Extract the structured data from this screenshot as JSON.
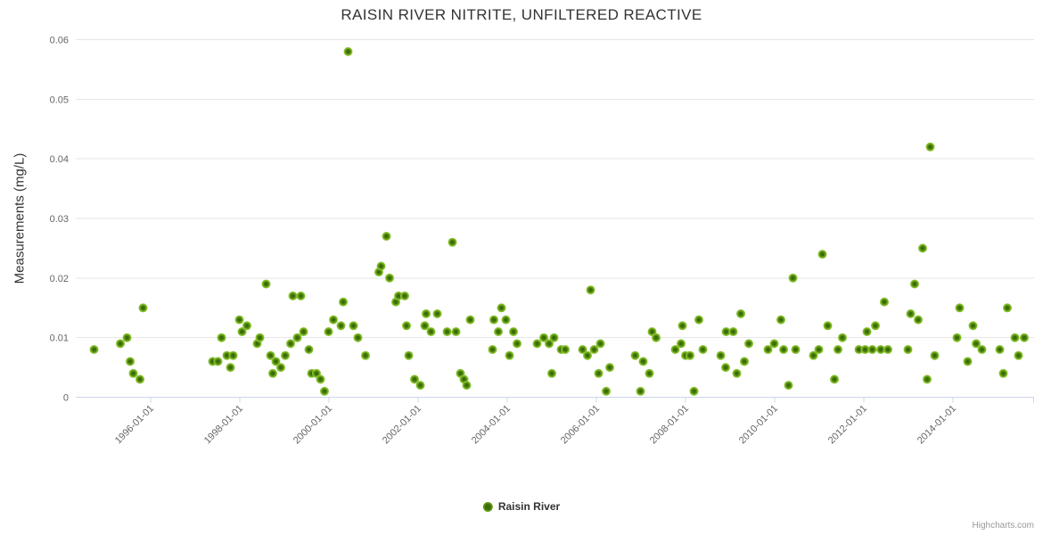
{
  "chart": {
    "title": "RAISIN RIVER NITRITE, UNFILTERED REACTIVE",
    "y_axis_title": "Measurements (mg/L)",
    "legend_label": "Raisin River",
    "credits": "Highcharts.com",
    "colors": {
      "point_core": "#3a6c08",
      "point_mid": "#7ab31e",
      "point_outer": "#94ce47",
      "gridline": "#e6e6e6",
      "axis_line": "#ccd6eb",
      "axis_label": "#666666",
      "title_text": "#333333"
    }
  },
  "chart_data": {
    "type": "scatter",
    "title": "RAISIN RIVER NITRITE, UNFILTERED REACTIVE",
    "xlabel": "",
    "ylabel": "Measurements (mg/L)",
    "ylim": [
      0,
      0.06
    ],
    "y_tick_values": [
      0,
      0.01,
      0.02,
      0.03,
      0.04,
      0.05,
      0.06
    ],
    "y_tick_labels": [
      "0",
      "0.01",
      "0.02",
      "0.03",
      "0.04",
      "0.05",
      "0.06"
    ],
    "xlim_decimal_years": [
      1994.32,
      2015.82
    ],
    "x_tick_years": [
      1996,
      1998,
      2000,
      2002,
      2004,
      2006,
      2008,
      2010,
      2012,
      2014
    ],
    "x_tick_labels": [
      "1996-01-01",
      "1998-01-01",
      "2000-01-01",
      "2002-01-01",
      "2004-01-01",
      "2006-01-01",
      "2008-01-01",
      "2010-01-01",
      "2012-01-01",
      "2014-01-01"
    ],
    "grid": "horizontal",
    "legend_position": "bottom-center",
    "series": [
      {
        "name": "Raisin River",
        "marker_color": "#7ab31e",
        "points": [
          [
            1994.73,
            0.008
          ],
          [
            1995.32,
            0.009
          ],
          [
            1995.47,
            0.01
          ],
          [
            1995.54,
            0.006
          ],
          [
            1995.61,
            0.004
          ],
          [
            1995.76,
            0.003
          ],
          [
            1995.83,
            0.015
          ],
          [
            1997.39,
            0.006
          ],
          [
            1997.51,
            0.006
          ],
          [
            1997.59,
            0.01
          ],
          [
            1997.71,
            0.007
          ],
          [
            1997.79,
            0.005
          ],
          [
            1997.85,
            0.007
          ],
          [
            1997.99,
            0.013
          ],
          [
            1998.05,
            0.011
          ],
          [
            1998.16,
            0.012
          ],
          [
            1998.39,
            0.009
          ],
          [
            1998.45,
            0.01
          ],
          [
            1998.59,
            0.019
          ],
          [
            1998.69,
            0.007
          ],
          [
            1998.74,
            0.004
          ],
          [
            1998.81,
            0.006
          ],
          [
            1998.92,
            0.005
          ],
          [
            1999.02,
            0.007
          ],
          [
            1999.14,
            0.009
          ],
          [
            1999.19,
            0.017
          ],
          [
            1999.29,
            0.01
          ],
          [
            1999.37,
            0.017
          ],
          [
            1999.43,
            0.011
          ],
          [
            1999.55,
            0.008
          ],
          [
            1999.61,
            0.004
          ],
          [
            1999.72,
            0.004
          ],
          [
            1999.81,
            0.003
          ],
          [
            1999.9,
            0.001
          ],
          [
            1999.99,
            0.011
          ],
          [
            2000.1,
            0.013
          ],
          [
            2000.27,
            0.012
          ],
          [
            2000.32,
            0.016
          ],
          [
            2000.43,
            0.058
          ],
          [
            2000.55,
            0.012
          ],
          [
            2000.65,
            0.01
          ],
          [
            2000.82,
            0.007
          ],
          [
            2001.12,
            0.021
          ],
          [
            2001.17,
            0.022
          ],
          [
            2001.29,
            0.027
          ],
          [
            2001.36,
            0.02
          ],
          [
            2001.5,
            0.016
          ],
          [
            2001.56,
            0.017
          ],
          [
            2001.7,
            0.017
          ],
          [
            2001.74,
            0.012
          ],
          [
            2001.79,
            0.007
          ],
          [
            2001.92,
            0.003
          ],
          [
            2002.05,
            0.002
          ],
          [
            2002.15,
            0.012
          ],
          [
            2002.18,
            0.014
          ],
          [
            2002.29,
            0.011
          ],
          [
            2002.43,
            0.014
          ],
          [
            2002.65,
            0.011
          ],
          [
            2002.77,
            0.026
          ],
          [
            2002.85,
            0.011
          ],
          [
            2002.95,
            0.004
          ],
          [
            2003.03,
            0.003
          ],
          [
            2003.09,
            0.002
          ],
          [
            2003.17,
            0.013
          ],
          [
            2003.67,
            0.008
          ],
          [
            2003.7,
            0.013
          ],
          [
            2003.8,
            0.011
          ],
          [
            2003.87,
            0.015
          ],
          [
            2003.97,
            0.013
          ],
          [
            2004.05,
            0.007
          ],
          [
            2004.14,
            0.011
          ],
          [
            2004.22,
            0.009
          ],
          [
            2004.67,
            0.009
          ],
          [
            2004.82,
            0.01
          ],
          [
            2004.94,
            0.009
          ],
          [
            2005.0,
            0.004
          ],
          [
            2005.05,
            0.01
          ],
          [
            2005.21,
            0.008
          ],
          [
            2005.3,
            0.008
          ],
          [
            2005.69,
            0.008
          ],
          [
            2005.8,
            0.007
          ],
          [
            2005.87,
            0.018
          ],
          [
            2005.95,
            0.008
          ],
          [
            2006.05,
            0.004
          ],
          [
            2006.09,
            0.009
          ],
          [
            2006.22,
            0.001
          ],
          [
            2006.3,
            0.005
          ],
          [
            2006.87,
            0.007
          ],
          [
            2006.99,
            0.001
          ],
          [
            2007.05,
            0.006
          ],
          [
            2007.19,
            0.004
          ],
          [
            2007.25,
            0.011
          ],
          [
            2007.34,
            0.01
          ],
          [
            2007.77,
            0.008
          ],
          [
            2007.9,
            0.009
          ],
          [
            2007.93,
            0.012
          ],
          [
            2008.0,
            0.007
          ],
          [
            2008.1,
            0.007
          ],
          [
            2008.19,
            0.001
          ],
          [
            2008.3,
            0.013
          ],
          [
            2008.39,
            0.008
          ],
          [
            2008.79,
            0.007
          ],
          [
            2008.9,
            0.005
          ],
          [
            2008.91,
            0.011
          ],
          [
            2009.07,
            0.011
          ],
          [
            2009.15,
            0.004
          ],
          [
            2009.24,
            0.014
          ],
          [
            2009.32,
            0.006
          ],
          [
            2009.42,
            0.009
          ],
          [
            2009.85,
            0.008
          ],
          [
            2009.99,
            0.009
          ],
          [
            2010.14,
            0.013
          ],
          [
            2010.2,
            0.008
          ],
          [
            2010.31,
            0.002
          ],
          [
            2010.41,
            0.02
          ],
          [
            2010.47,
            0.008
          ],
          [
            2010.87,
            0.007
          ],
          [
            2010.99,
            0.008
          ],
          [
            2011.07,
            0.024
          ],
          [
            2011.19,
            0.012
          ],
          [
            2011.34,
            0.003
          ],
          [
            2011.42,
            0.008
          ],
          [
            2011.52,
            0.01
          ],
          [
            2011.89,
            0.008
          ],
          [
            2012.03,
            0.008
          ],
          [
            2012.07,
            0.011
          ],
          [
            2012.19,
            0.008
          ],
          [
            2012.26,
            0.012
          ],
          [
            2012.38,
            0.008
          ],
          [
            2012.46,
            0.016
          ],
          [
            2012.54,
            0.008
          ],
          [
            2012.99,
            0.008
          ],
          [
            2013.05,
            0.014
          ],
          [
            2013.14,
            0.019
          ],
          [
            2013.22,
            0.013
          ],
          [
            2013.32,
            0.025
          ],
          [
            2013.42,
            0.003
          ],
          [
            2013.49,
            0.042
          ],
          [
            2013.59,
            0.007
          ],
          [
            2014.09,
            0.01
          ],
          [
            2014.15,
            0.015
          ],
          [
            2014.33,
            0.006
          ],
          [
            2014.45,
            0.012
          ],
          [
            2014.52,
            0.009
          ],
          [
            2014.65,
            0.008
          ],
          [
            2015.05,
            0.008
          ],
          [
            2015.13,
            0.004
          ],
          [
            2015.22,
            0.015
          ],
          [
            2015.39,
            0.01
          ],
          [
            2015.47,
            0.007
          ],
          [
            2015.6,
            0.01
          ]
        ]
      }
    ]
  }
}
